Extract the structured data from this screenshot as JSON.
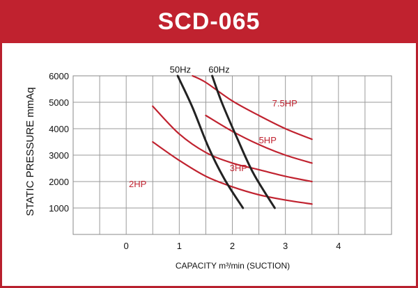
{
  "header": {
    "title": "SCD-065"
  },
  "chart_data": {
    "type": "line",
    "title": "SCD-065",
    "xlabel": "CAPACITY m³/min (SUCTION)",
    "ylabel": "STATIC PRESSURE mmAq",
    "xlim": [
      -1,
      5
    ],
    "ylim": [
      0,
      6000
    ],
    "x_ticks": [
      0,
      1,
      2,
      3,
      4
    ],
    "x_tick_labels": [
      "0",
      "1",
      "2",
      "3",
      "4"
    ],
    "y_ticks": [
      1000,
      2000,
      3000,
      4000,
      5000,
      6000
    ],
    "y_tick_labels": [
      "1000",
      "2000",
      "3000",
      "4000",
      "5000",
      "6000"
    ],
    "grid": true,
    "series": [
      {
        "name": "2HP",
        "group": "power",
        "color": "#c0222f",
        "x": [
          0.5,
          1.0,
          1.5,
          2.0,
          2.5,
          3.0,
          3.5
        ],
        "y": [
          3500,
          2800,
          2200,
          1800,
          1500,
          1300,
          1150
        ]
      },
      {
        "name": "3HP",
        "group": "power",
        "color": "#c0222f",
        "x": [
          0.5,
          1.0,
          1.5,
          2.0,
          2.5,
          3.0,
          3.5
        ],
        "y": [
          4850,
          3800,
          3100,
          2700,
          2450,
          2200,
          2000
        ]
      },
      {
        "name": "5HP",
        "group": "power",
        "color": "#c0222f",
        "x": [
          1.5,
          2.0,
          2.5,
          3.0,
          3.5
        ],
        "y": [
          4500,
          3900,
          3400,
          3000,
          2700
        ]
      },
      {
        "name": "7.5HP",
        "group": "power",
        "color": "#c0222f",
        "x": [
          1.25,
          1.5,
          2.0,
          2.5,
          3.0,
          3.5
        ],
        "y": [
          6000,
          5750,
          5050,
          4500,
          4000,
          3600
        ]
      },
      {
        "name": "50Hz",
        "group": "frequency",
        "color": "#222222",
        "x": [
          0.97,
          1.25,
          1.55,
          1.85,
          2.2
        ],
        "y": [
          6000,
          4800,
          3300,
          2100,
          1000
        ]
      },
      {
        "name": "60Hz",
        "group": "frequency",
        "color": "#222222",
        "x": [
          1.62,
          1.8,
          2.1,
          2.4,
          2.8
        ],
        "y": [
          6000,
          5000,
          3600,
          2300,
          1000
        ]
      }
    ]
  }
}
